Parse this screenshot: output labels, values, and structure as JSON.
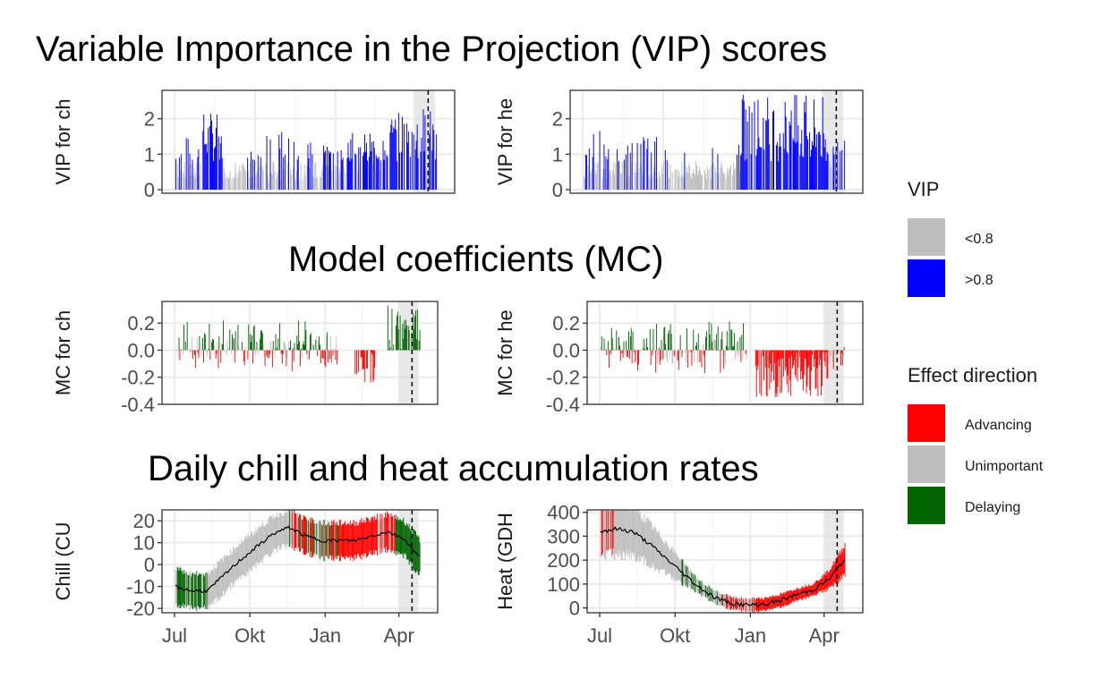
{
  "figure": {
    "titles": {
      "vip": "Variable Importance in the Projection (VIP) scores",
      "mc": "Model coefficients (MC)",
      "rates": "Daily chill and heat accumulation rates"
    },
    "x_tick_labels": [
      "Jul",
      "Okt",
      "Jan",
      "Apr"
    ],
    "legends": {
      "vip": {
        "title": "VIP",
        "entries": [
          {
            "label": "<0.8",
            "color": "#bebebe"
          },
          {
            "label": ">0.8",
            "color": "#0000ff"
          }
        ]
      },
      "effect": {
        "title": "Effect direction",
        "entries": [
          {
            "label": "Advancing",
            "color": "#ff0000"
          },
          {
            "label": "Unimportant",
            "color": "#bebebe"
          },
          {
            "label": "Delaying",
            "color": "#006400"
          }
        ]
      }
    }
  },
  "chart_data": [
    {
      "id": "vip_chill",
      "type": "bar",
      "ylabel": "VIP for ch",
      "x_range_day_of_season": [
        0,
        306
      ],
      "ylim": [
        -0.1,
        2.8
      ],
      "yticks": [
        0,
        1,
        2
      ],
      "yticklabels": [
        "0",
        "1",
        "2"
      ],
      "shaded_window_days": [
        275,
        298
      ],
      "dashed_line_day": 290,
      "values_by_day_segments": [
        {
          "days": [
            1,
            30
          ],
          "approx_range": [
            0.3,
            1.5
          ],
          "color": "blue"
        },
        {
          "days": [
            30,
            55
          ],
          "approx_range": [
            0.8,
            2.2
          ],
          "color": "blue"
        },
        {
          "days": [
            55,
            80
          ],
          "approx_range": [
            0.3,
            1.4
          ],
          "color": "mostly grey"
        },
        {
          "days": [
            80,
            150
          ],
          "approx_range": [
            0.2,
            1.7
          ],
          "color": "mixed"
        },
        {
          "days": [
            150,
            200
          ],
          "approx_range": [
            0.3,
            1.4
          ],
          "color": "mixed"
        },
        {
          "days": [
            200,
            245
          ],
          "approx_range": [
            0.5,
            1.6
          ],
          "color": "mostly blue"
        },
        {
          "days": [
            245,
            275
          ],
          "approx_range": [
            0.8,
            2.2
          ],
          "color": "blue"
        },
        {
          "days": [
            275,
            300
          ],
          "approx_range": [
            0.5,
            2.4
          ],
          "color": "blue"
        }
      ]
    },
    {
      "id": "vip_heat",
      "type": "bar",
      "ylabel": "VIP for he",
      "x_range_day_of_season": [
        0,
        306
      ],
      "ylim": [
        -0.1,
        2.8
      ],
      "yticks": [
        0,
        1,
        2
      ],
      "yticklabels": [
        "0",
        "1",
        "2"
      ],
      "shaded_window_days": [
        275,
        298
      ],
      "dashed_line_day": 290,
      "values_by_day_segments": [
        {
          "days": [
            1,
            40
          ],
          "approx_range": [
            0.3,
            1.7
          ],
          "color": "mixed"
        },
        {
          "days": [
            40,
            100
          ],
          "approx_range": [
            0.3,
            1.5
          ],
          "color": "mixed"
        },
        {
          "days": [
            100,
            180
          ],
          "approx_range": [
            0.4,
            1.3
          ],
          "color": "mostly grey"
        },
        {
          "days": [
            180,
            275
          ],
          "approx_range": [
            0.8,
            2.7
          ],
          "color": "blue"
        },
        {
          "days": [
            275,
            300
          ],
          "approx_range": [
            0.5,
            1.6
          ],
          "color": "blue"
        }
      ]
    },
    {
      "id": "mc_chill",
      "type": "bar",
      "ylabel": "MC for ch",
      "x_range_day_of_season": [
        0,
        306
      ],
      "ylim": [
        -0.4,
        0.36
      ],
      "yticks": [
        -0.4,
        -0.2,
        0.0,
        0.2
      ],
      "yticklabels": [
        "-0.4",
        "-0.2",
        "0.0",
        "0.2"
      ],
      "shaded_window_days": [
        275,
        298
      ],
      "dashed_line_day": 290,
      "values_by_day_segments": [
        {
          "days": [
            1,
            60
          ],
          "approx_range": [
            -0.12,
            0.22
          ],
          "color": "mixed green/red"
        },
        {
          "days": [
            60,
            200
          ],
          "approx_range": [
            -0.15,
            0.22
          ],
          "color": "mixed"
        },
        {
          "days": [
            220,
            245
          ],
          "approx_range": [
            -0.24,
            0.0
          ],
          "color": "red"
        },
        {
          "days": [
            260,
            300
          ],
          "approx_range": [
            0.0,
            0.34
          ],
          "color": "green"
        }
      ]
    },
    {
      "id": "mc_heat",
      "type": "bar",
      "ylabel": "MC for he",
      "x_range_day_of_season": [
        0,
        306
      ],
      "ylim": [
        -0.4,
        0.36
      ],
      "yticks": [
        -0.4,
        -0.2,
        0.0,
        0.2
      ],
      "yticklabels": [
        "-0.4",
        "-0.2",
        "0.0",
        "0.2"
      ],
      "shaded_window_days": [
        275,
        298
      ],
      "dashed_line_day": 290,
      "values_by_day_segments": [
        {
          "days": [
            1,
            60
          ],
          "approx_range": [
            -0.15,
            0.2
          ],
          "color": "mixed red/green"
        },
        {
          "days": [
            60,
            180
          ],
          "approx_range": [
            -0.22,
            0.18
          ],
          "color": "mixed"
        },
        {
          "days": [
            190,
            280
          ],
          "approx_range": [
            -0.35,
            0.0
          ],
          "color": "red"
        },
        {
          "days": [
            280,
            300
          ],
          "approx_range": [
            -0.2,
            0.05
          ],
          "color": "mixed"
        }
      ]
    },
    {
      "id": "rate_chill",
      "type": "line",
      "ylabel": "Chill (CU",
      "x_range_day_of_season": [
        0,
        306
      ],
      "ylim": [
        -22,
        25
      ],
      "yticks": [
        -20,
        -10,
        0,
        10,
        20
      ],
      "yticklabels": [
        "-20",
        "-10",
        "0",
        "10",
        "20"
      ],
      "shaded_window_days": [
        275,
        298
      ],
      "dashed_line_day": 290,
      "series": [
        {
          "name": "mean",
          "x_days": [
            0,
            20,
            40,
            60,
            80,
            100,
            120,
            140,
            160,
            180,
            200,
            220,
            240,
            260,
            280,
            300
          ],
          "y": [
            -10,
            -12,
            -12,
            -5,
            2,
            8,
            14,
            17,
            13,
            11,
            11,
            11,
            13,
            15,
            12,
            3
          ],
          "std_band": 8
        }
      ]
    },
    {
      "id": "rate_heat",
      "type": "line",
      "ylabel": "Heat (GDH",
      "x_range_day_of_season": [
        0,
        306
      ],
      "ylim": [
        -20,
        410
      ],
      "yticks": [
        0,
        100,
        200,
        300,
        400
      ],
      "yticklabels": [
        "0",
        "100",
        "200",
        "300",
        "400"
      ],
      "shaded_window_days": [
        275,
        298
      ],
      "dashed_line_day": 290,
      "series": [
        {
          "name": "mean",
          "x_days": [
            0,
            20,
            40,
            60,
            80,
            100,
            120,
            140,
            160,
            180,
            200,
            220,
            240,
            260,
            280,
            300
          ],
          "y": [
            320,
            330,
            320,
            270,
            210,
            150,
            90,
            45,
            20,
            12,
            15,
            30,
            55,
            75,
            120,
            205
          ],
          "std_band_relative": 0.3
        }
      ]
    }
  ]
}
